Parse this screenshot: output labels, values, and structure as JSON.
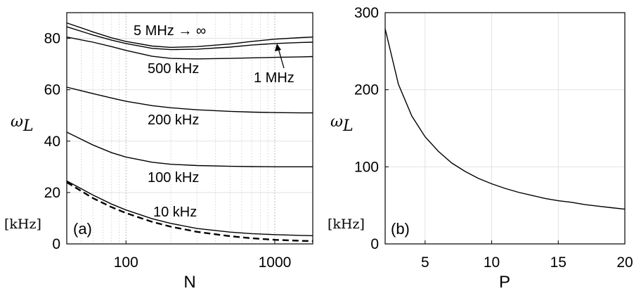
{
  "chart_data": [
    {
      "panel_label": "(a)",
      "type": "line",
      "xlabel": "N",
      "ylabel": "ω",
      "ylabel_sub": "L",
      "unit_label": "[kHz]",
      "xscale": "log",
      "xlim": [
        40,
        1800
      ],
      "ylim": [
        0,
        90
      ],
      "xticks": [
        100,
        1000
      ],
      "xtick_labels": [
        "100",
        "1000"
      ],
      "yticks": [
        0,
        20,
        40,
        60,
        80
      ],
      "ytick_labels": [
        "0",
        "20",
        "40",
        "60",
        "80"
      ],
      "grid": true,
      "series": [
        {
          "label": "5 MHz → ∞",
          "style": "solid",
          "x": [
            40,
            60,
            80,
            100,
            150,
            200,
            300,
            500,
            700,
            1000,
            1500,
            1800
          ],
          "y": [
            86,
            82.5,
            80.2,
            78.8,
            77,
            76.5,
            76.8,
            77.8,
            78.8,
            79.7,
            80.3,
            80.5
          ]
        },
        {
          "label": "1 MHz",
          "style": "solid",
          "x": [
            40,
            60,
            80,
            100,
            150,
            200,
            300,
            500,
            700,
            1000,
            1500,
            1800
          ],
          "y": [
            84.5,
            81.3,
            79.3,
            78,
            76.1,
            75.6,
            75.8,
            76.6,
            77.4,
            78,
            78.4,
            78.5
          ]
        },
        {
          "label": "500 kHz",
          "style": "solid",
          "x": [
            40,
            60,
            80,
            100,
            150,
            200,
            300,
            500,
            700,
            1000,
            1500,
            1800
          ],
          "y": [
            80.5,
            78.5,
            76.8,
            75.3,
            73,
            72.2,
            72,
            72.2,
            72.4,
            72.6,
            72.8,
            72.9
          ]
        },
        {
          "label": "200 kHz",
          "style": "solid",
          "x": [
            40,
            60,
            80,
            100,
            150,
            200,
            300,
            500,
            700,
            1000,
            1500,
            1800
          ],
          "y": [
            61,
            58.5,
            56.8,
            55.5,
            53.8,
            53,
            52.2,
            51.6,
            51.3,
            51.1,
            51,
            51
          ]
        },
        {
          "label": "100 kHz",
          "style": "solid",
          "x": [
            40,
            60,
            80,
            100,
            150,
            200,
            300,
            500,
            700,
            1000,
            1500,
            1800
          ],
          "y": [
            43.5,
            38.5,
            35.5,
            33.8,
            31.8,
            31,
            30.5,
            30.2,
            30.1,
            30,
            30,
            30
          ]
        },
        {
          "label": "10 kHz",
          "style": "solid",
          "x": [
            40,
            60,
            80,
            100,
            150,
            200,
            300,
            500,
            700,
            1000,
            1500,
            1800
          ],
          "y": [
            24.5,
            19,
            15.5,
            13.2,
            9.8,
            8,
            6,
            4.6,
            4,
            3.6,
            3.3,
            3.2
          ]
        },
        {
          "label": "",
          "style": "dashed",
          "x": [
            40,
            60,
            80,
            100,
            150,
            200,
            300,
            500,
            700,
            1000,
            1500,
            1800
          ],
          "y": [
            24,
            17.8,
            14.3,
            12,
            8.6,
            6.7,
            4.7,
            3,
            2.2,
            1.6,
            1.2,
            1.1
          ]
        }
      ],
      "annotations": [
        {
          "text": "5 MHz → ∞"
        },
        {
          "text": "500 kHz"
        },
        {
          "text": "1 MHz"
        },
        {
          "text": "200 kHz"
        },
        {
          "text": "100 kHz"
        },
        {
          "text": "10 kHz"
        }
      ]
    },
    {
      "panel_label": "(b)",
      "type": "line",
      "xlabel": "P",
      "ylabel": "ω",
      "ylabel_sub": "L",
      "unit_label": "[kHz]",
      "xscale": "linear",
      "xlim": [
        2,
        20
      ],
      "ylim": [
        0,
        300
      ],
      "xticks": [
        5,
        10,
        15,
        20
      ],
      "xtick_labels": [
        "5",
        "10",
        "15",
        "20"
      ],
      "yticks": [
        0,
        100,
        200,
        300
      ],
      "ytick_labels": [
        "0",
        "100",
        "200",
        "300"
      ],
      "grid": true,
      "series": [
        {
          "label": "",
          "style": "solid",
          "x": [
            2,
            3,
            4,
            5,
            6,
            7,
            8,
            9,
            10,
            11,
            12,
            13,
            14,
            15,
            16,
            17,
            18,
            19,
            20
          ],
          "y": [
            279,
            207,
            166,
            139,
            120,
            105,
            94,
            85,
            78,
            72,
            67,
            63,
            59,
            56,
            54,
            51,
            49,
            47,
            45
          ]
        }
      ]
    }
  ]
}
